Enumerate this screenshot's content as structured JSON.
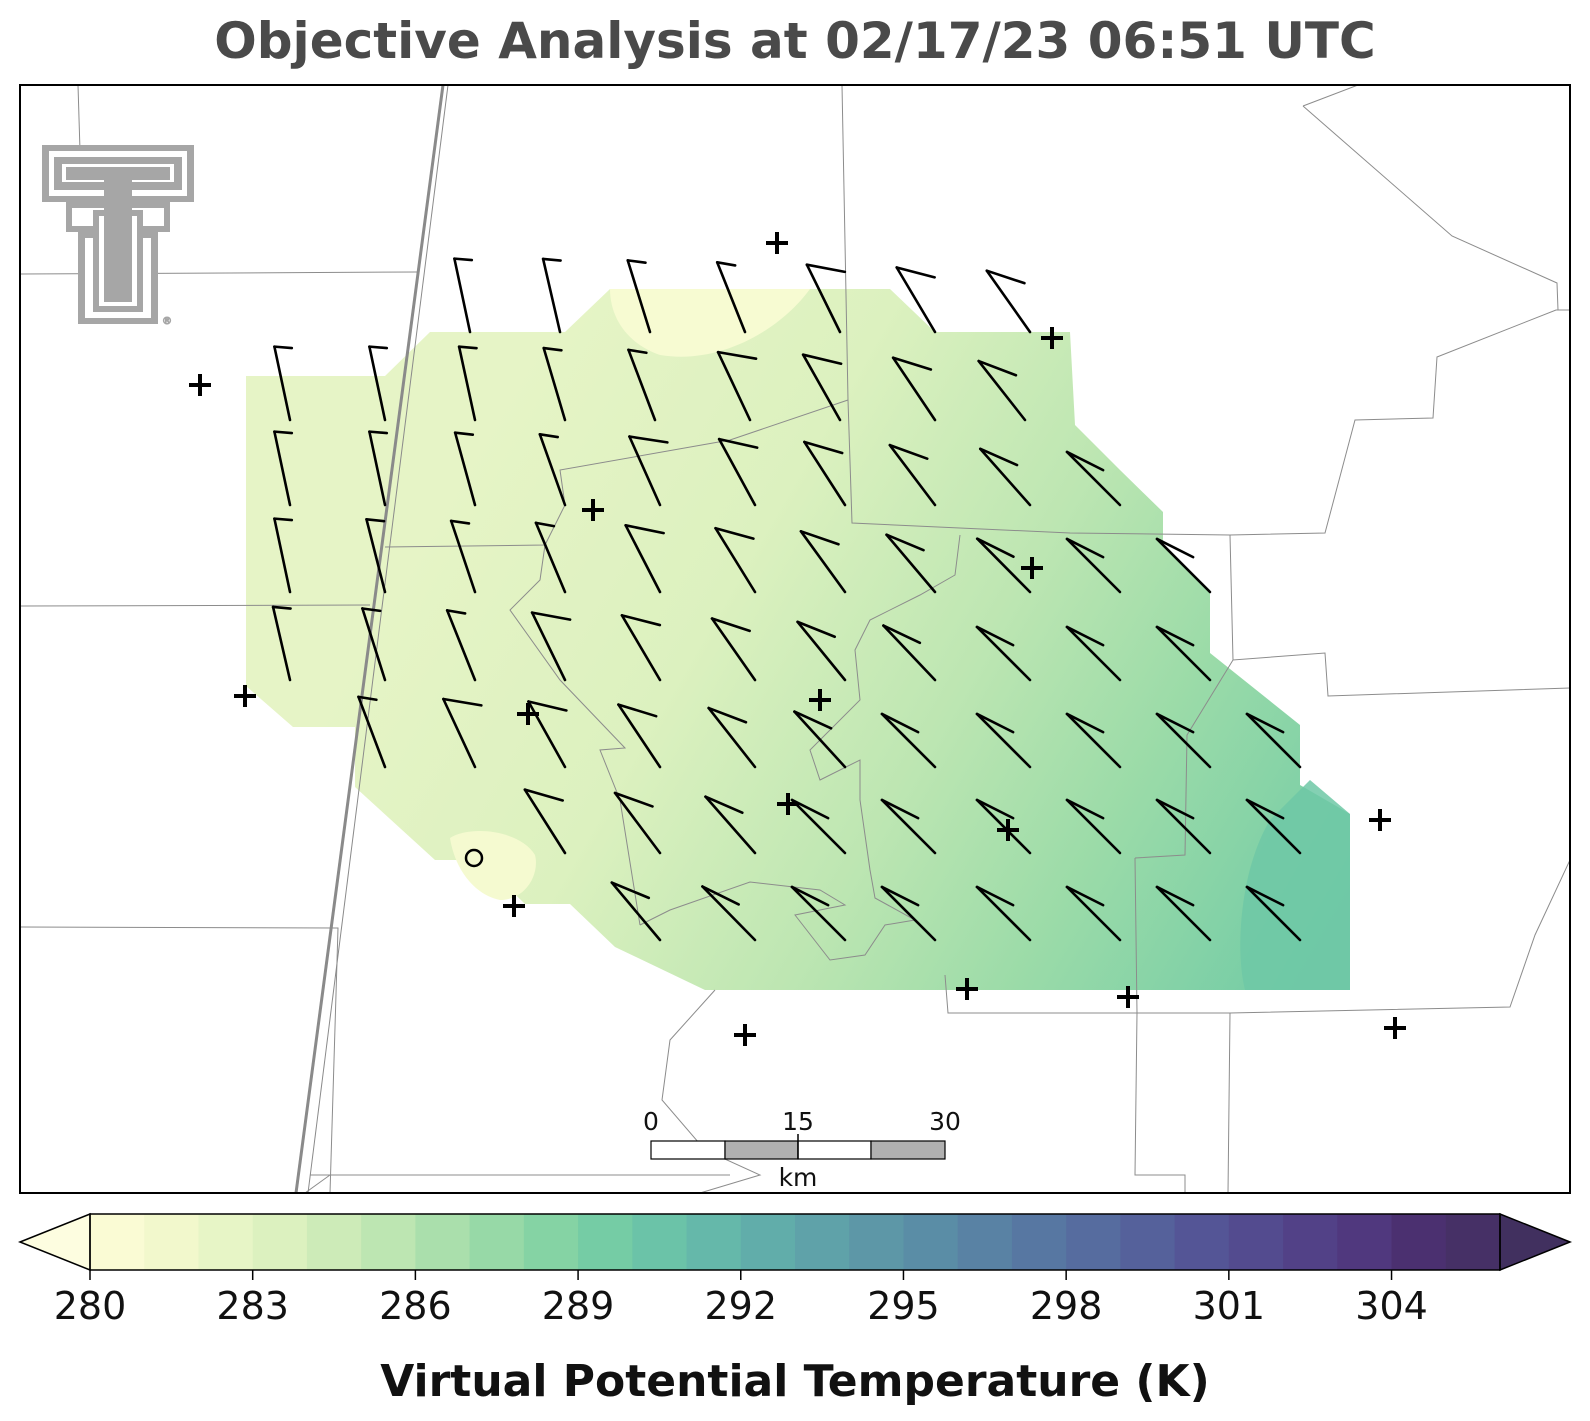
{
  "title": "Objective Analysis at 02/17/23 06:51 UTC",
  "colorbar": {
    "label": "Virtual Potential Temperature (K)",
    "min": 280,
    "max": 306,
    "step": 1,
    "ticks": [
      "280",
      "283",
      "286",
      "289",
      "292",
      "295",
      "298",
      "301",
      "304"
    ],
    "colors": [
      "#fafbd4",
      "#f2f8cc",
      "#e7f5c6",
      "#dcf1bf",
      "#cdebb8",
      "#bde6b2",
      "#aadfac",
      "#97d9a7",
      "#85d3a4",
      "#75cca5",
      "#6bc3a8",
      "#65b8aa",
      "#61adaa",
      "#5fa2a9",
      "#5d97a7",
      "#5a8da6",
      "#5982a4",
      "#5777a2",
      "#566c9f",
      "#55619b",
      "#545596",
      "#534b8f",
      "#524187",
      "#50387e",
      "#4b3070",
      "#463066"
    ],
    "extend_low_color": "#fdfde0",
    "extend_high_color": "#41305f"
  },
  "scale_bar": {
    "unit": "km",
    "labels": [
      "0",
      "15",
      "30"
    ]
  },
  "logo": {
    "alt_text": "Texas Tech Double T",
    "registered_mark": "®"
  },
  "map": {
    "source": "analysis",
    "field": "virtual potential temperature contours",
    "color_scale": "yellow-green-blue"
  }
}
